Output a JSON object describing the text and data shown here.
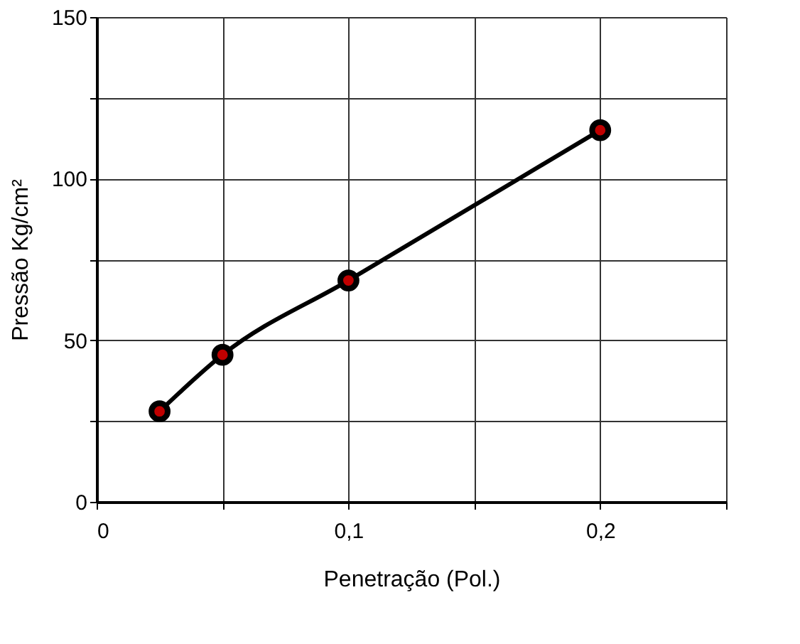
{
  "chart_data": {
    "type": "line",
    "xlabel": "Penetração (Pol.)",
    "ylabel": "Pressão Kg/cm²",
    "x": [
      0.025,
      0.05,
      0.1,
      0.2
    ],
    "series": [
      {
        "color": "#000000",
        "values": [
          28,
          45.5,
          68.5,
          115
        ]
      }
    ],
    "marker": "circle",
    "line_style": "solid",
    "grid": true,
    "xlim": [
      0,
      0.25
    ],
    "xticks": [
      0,
      {
        "value": 0.05,
        "label": null
      },
      {
        "value": 0.1,
        "label": "0,1"
      },
      {
        "value": 0.15,
        "label": null
      },
      {
        "value": 0.2,
        "label": "0,2"
      },
      {
        "value": 0.25,
        "label": null
      }
    ],
    "ylim": [
      0,
      150
    ],
    "yticks": [
      0,
      {
        "value": 25,
        "label": null
      },
      50,
      {
        "value": 75,
        "label": null
      },
      100,
      {
        "value": 125,
        "label": null
      },
      150
    ]
  }
}
